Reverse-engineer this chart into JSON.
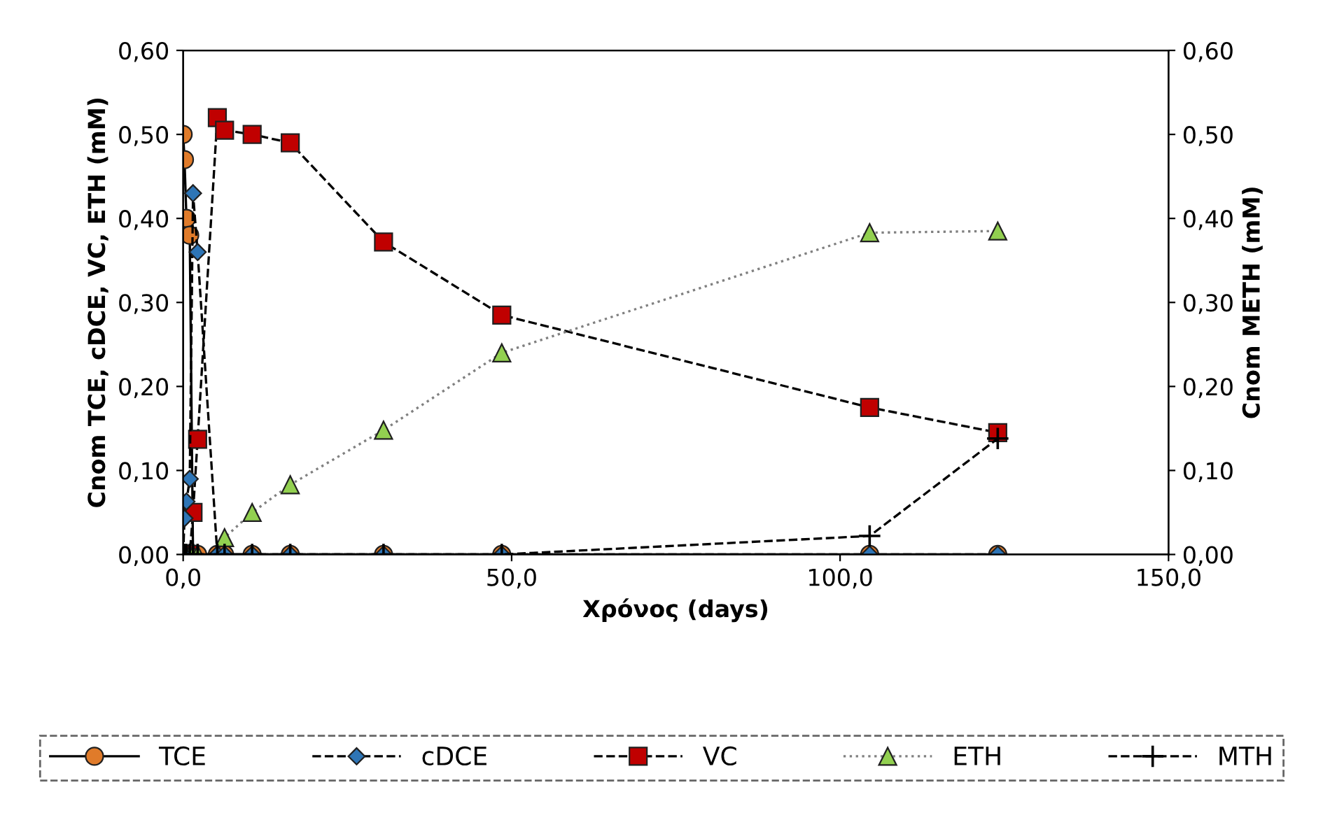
{
  "chart_data": {
    "type": "line",
    "xlabel": "Χρόνος (days)",
    "ylabel": "Cnom TCE, cDCE, VC, ETH (mM)",
    "y2label": "Cnom METH (mM)",
    "x": [
      0,
      0.2,
      0.5,
      1,
      1.5,
      2.2,
      5.2,
      6.3,
      10.5,
      16.3,
      30.5,
      48.5,
      104.5,
      124
    ],
    "series": [
      {
        "name": "TCE",
        "color": "#e07b2a",
        "marker": "circle",
        "line_style": "solid",
        "values": [
          0.5,
          0.47,
          0.4,
          0.38,
          0,
          0,
          0,
          0,
          0,
          0,
          0,
          0,
          0,
          0
        ]
      },
      {
        "name": "cDCE",
        "color": "#2e75b6",
        "marker": "diamond",
        "line_style": "dashed",
        "values": [
          0,
          0.043,
          0.063,
          0.09,
          0.43,
          0.36,
          0,
          0,
          0,
          0,
          0,
          0,
          0,
          0
        ]
      },
      {
        "name": "VC",
        "color": "#c00000",
        "marker": "square",
        "line_style": "dashed",
        "values": [
          0,
          0,
          0,
          0,
          0.05,
          0.137,
          0.52,
          0.505,
          0.5,
          0.49,
          0.372,
          0.285,
          0.175,
          0.145
        ]
      },
      {
        "name": "ETH",
        "color": "#92d050",
        "marker": "triangle",
        "line_style": "dotted",
        "values": [
          0,
          0,
          0,
          0,
          0,
          0,
          0,
          0.02,
          0.05,
          0.083,
          0.148,
          0.24,
          0.383,
          0.385
        ]
      },
      {
        "name": "MTH",
        "color": "#000000",
        "marker": "cross",
        "line_style": "dashed",
        "axis": "y2",
        "values": [
          0,
          0,
          0,
          0,
          0,
          0,
          0,
          0,
          0,
          0,
          0,
          0,
          0.022,
          0.138
        ]
      }
    ],
    "xlim": [
      0,
      150
    ],
    "xticks": [
      {
        "value": 0,
        "label": "0,0"
      },
      {
        "value": 50,
        "label": "50,0"
      },
      {
        "value": 100,
        "label": "100,0"
      },
      {
        "value": 150,
        "label": "150,0"
      }
    ],
    "ylim": [
      0,
      0.6
    ],
    "yticks": [
      {
        "value": 0,
        "label": "0,00"
      },
      {
        "value": 0.1,
        "label": "0,10"
      },
      {
        "value": 0.2,
        "label": "0,20"
      },
      {
        "value": 0.3,
        "label": "0,30"
      },
      {
        "value": 0.4,
        "label": "0,40"
      },
      {
        "value": 0.5,
        "label": "0,50"
      },
      {
        "value": 0.6,
        "label": "0,60"
      }
    ],
    "y2lim": [
      0,
      0.6
    ],
    "y2ticks": [
      {
        "value": 0,
        "label": "0,00"
      },
      {
        "value": 0.1,
        "label": "0,10"
      },
      {
        "value": 0.2,
        "label": "0,20"
      },
      {
        "value": 0.3,
        "label": "0,30"
      },
      {
        "value": 0.4,
        "label": "0,40"
      },
      {
        "value": 0.5,
        "label": "0,50"
      },
      {
        "value": 0.6,
        "label": "0,60"
      }
    ],
    "grid": false,
    "legend": "bottom"
  }
}
